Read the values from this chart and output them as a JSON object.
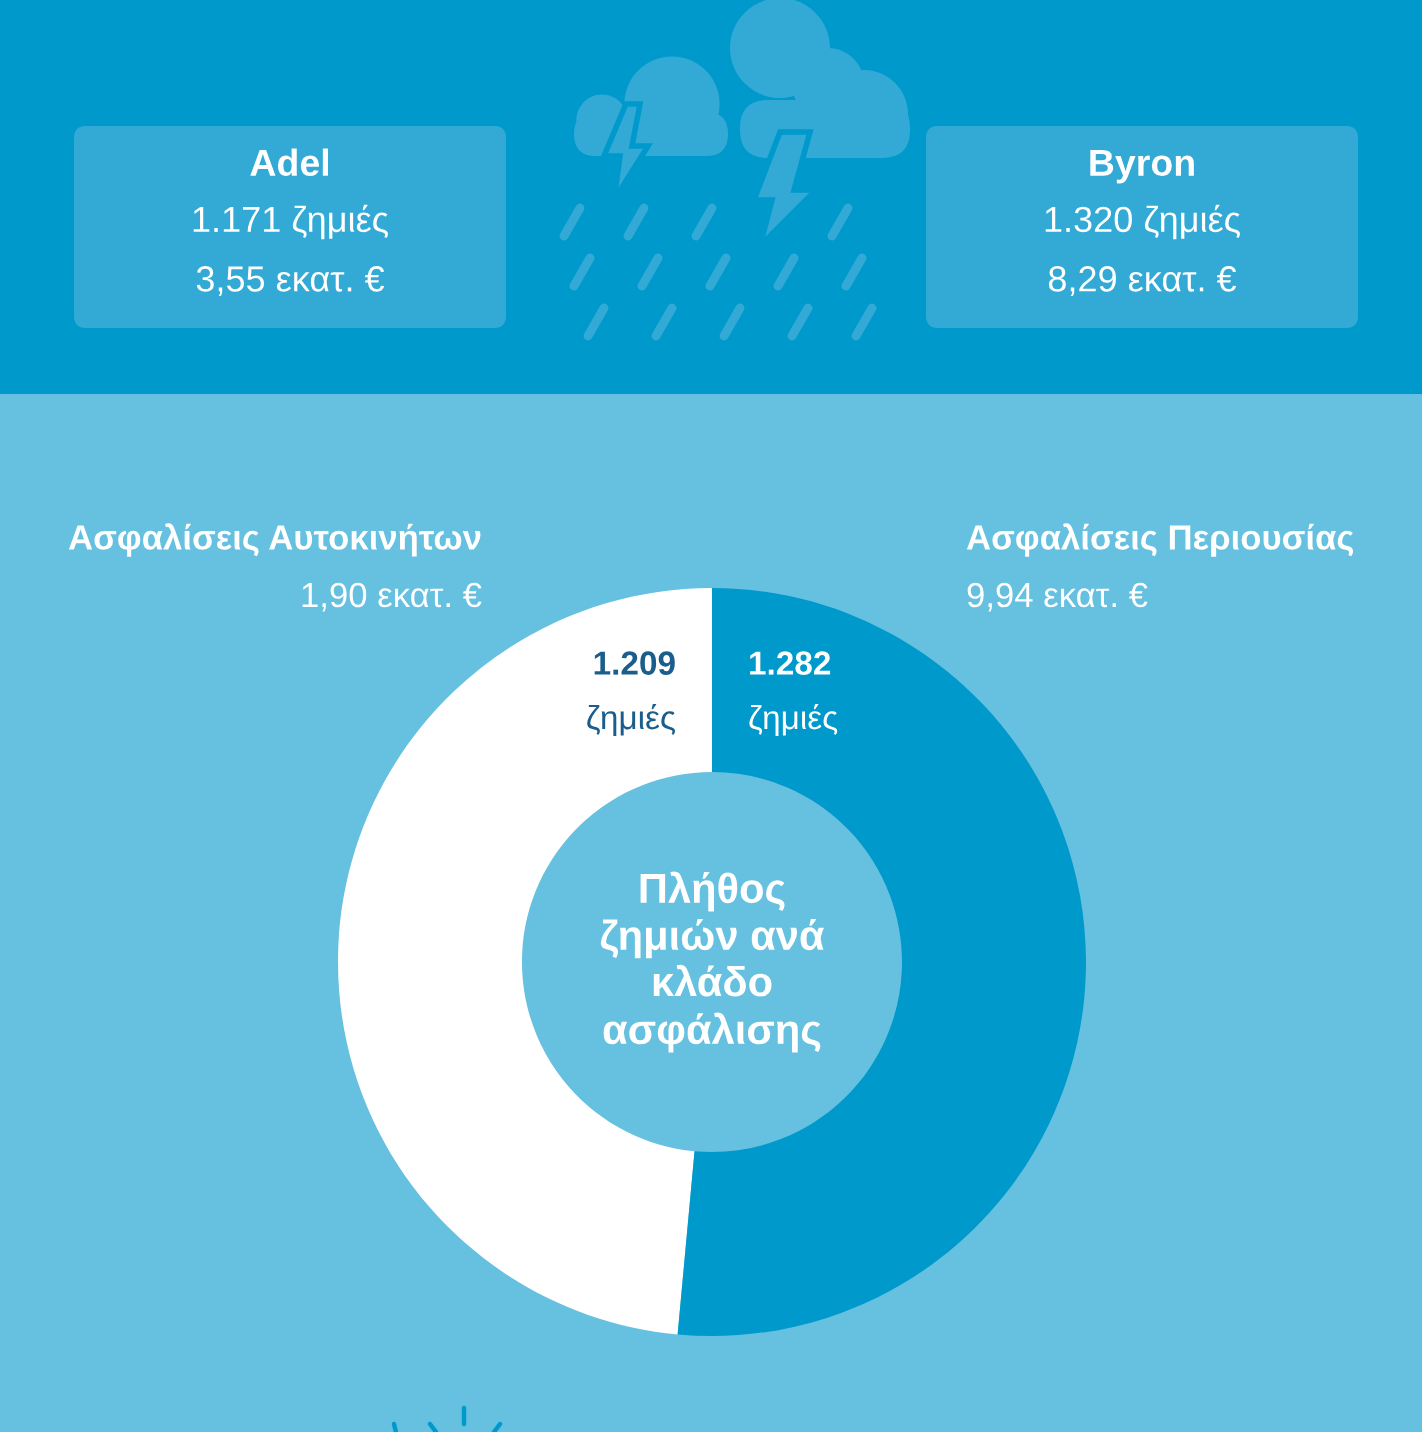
{
  "chart_data": [
    {
      "type": "other",
      "title": "Adel",
      "annotations": [
        "1.171 ζημιές",
        "3,55 εκατ. €"
      ]
    },
    {
      "type": "other",
      "title": "Byron",
      "annotations": [
        "1.320 ζημιές",
        "8,29 εκατ. €"
      ]
    },
    {
      "type": "donut",
      "title": "Πλήθος\nζημιών ανά\nκλάδο\nασφάλισης",
      "categories": [
        "Ασφαλίσεις Αυτοκινήτων",
        "Ασφαλίσεις Περιουσίας"
      ],
      "values": [
        1209,
        1282
      ],
      "colors": [
        "#ffffff",
        "#0099cc"
      ],
      "value_labels": [
        "1.209\nζημιές",
        "1.282\nζημιές"
      ],
      "annotations": [
        "1,90 εκατ. €",
        "9,94 εκατ. €"
      ]
    }
  ]
}
